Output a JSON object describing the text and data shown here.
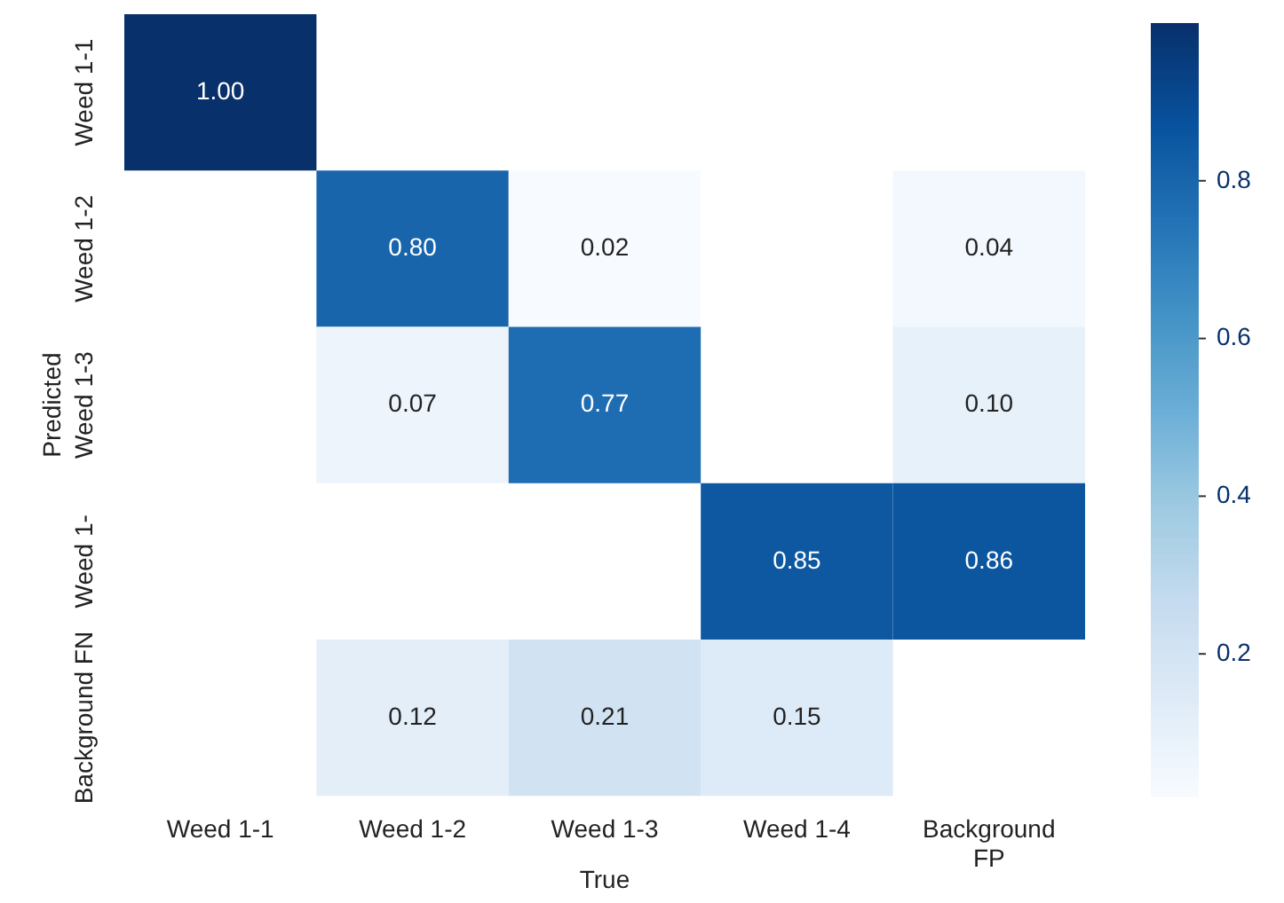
{
  "chart_data": {
    "type": "heatmap",
    "xlabel": "True",
    "ylabel": "Predicted",
    "categories": [
      "Weed 1-1",
      "Weed 1-2",
      "Weed 1-3",
      "Weed 1-4",
      "Background FP"
    ],
    "y_categories": [
      "Weed 1-1",
      "Weed 1-2",
      "Weed 1-3",
      "Weed 1-",
      "Background FN"
    ],
    "cells": [
      [
        1.0,
        null,
        null,
        null,
        null
      ],
      [
        null,
        0.8,
        0.02,
        null,
        0.04
      ],
      [
        null,
        0.07,
        0.77,
        null,
        0.1
      ],
      [
        null,
        null,
        null,
        0.85,
        0.86
      ],
      [
        null,
        0.12,
        0.21,
        0.15,
        null
      ]
    ],
    "cell_labels": [
      [
        "1.00",
        null,
        null,
        null,
        null
      ],
      [
        null,
        "0.80",
        "0.02",
        null,
        "0.04"
      ],
      [
        null,
        "0.07",
        "0.77",
        null,
        "0.10"
      ],
      [
        null,
        null,
        null,
        "0.85",
        "0.86"
      ],
      [
        null,
        "0.12",
        "0.21",
        "0.15",
        null
      ]
    ],
    "clim": [
      0.02,
      1.0
    ],
    "cticks": [
      0.2,
      0.4,
      0.6,
      0.8
    ]
  }
}
